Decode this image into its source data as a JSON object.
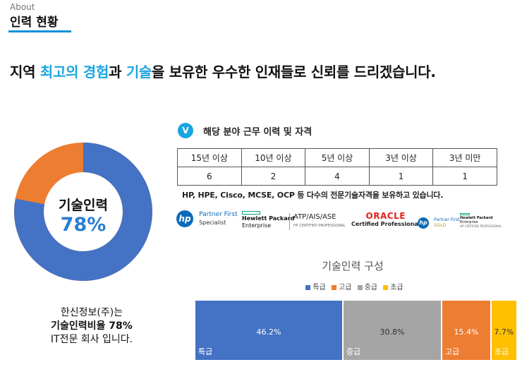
{
  "breadcrumb": "About",
  "page_title": "인력 현황",
  "headline": {
    "part1": "지역 ",
    "highlight1": "최고의 경험",
    "part2": "과 ",
    "highlight2": "기술",
    "part3": "을 보유한 우수한 인재들로 신뢰를 드리겠습니다."
  },
  "donut": {
    "label": "기술인력",
    "value": "78%",
    "fraction": 0.78,
    "colors": {
      "primary": "#4472c4",
      "secondary": "#ed7d31"
    }
  },
  "company": {
    "line1": "한신정보(주)는",
    "line2": "기술인력비율 78%",
    "line3": "IT전문 회사 입니다."
  },
  "section": {
    "badge": "V",
    "title": "해당 분야 근무 이력 및 자격"
  },
  "career_table": {
    "headers": [
      "15년 이상",
      "10년 이상",
      "5년 이상",
      "3년 이상",
      "3년 미만"
    ],
    "values": [
      "6",
      "2",
      "4",
      "1",
      "1"
    ]
  },
  "cert_text": "HP, HPE, Cisco, MCSE, OCP 등 다수의 전문기술자격을 보유하고 있습니다.",
  "logos": {
    "hp_partner": {
      "line1": "Partner First",
      "line2": "Specialist"
    },
    "hpe": {
      "line1": "Hewlett Packard",
      "line2": "Enterprise"
    },
    "atp": {
      "line1": "ATP/AIS/ASE",
      "line2": "HP CERTIFIED PROFESSIONAL"
    },
    "oracle": {
      "line1": "ORACLE",
      "line2": "Certified Professional"
    },
    "hp_gold": {
      "line1": "Partner First",
      "line2": "GOLD"
    },
    "hpe_small": {
      "line1": "Hewlett Packard",
      "line2": "Enterprise",
      "line3": "HP CERTIFIED PROFESSIONAL"
    }
  },
  "chart_data": {
    "type": "bar",
    "title": "기술인력 구성",
    "legend": [
      "특급",
      "고급",
      "중급",
      "초급"
    ],
    "categories": [
      "특급",
      "중급",
      "고급",
      "초급"
    ],
    "values": [
      46.2,
      30.8,
      15.4,
      7.7
    ],
    "labels": [
      "46.2%",
      "30.8%",
      "15.4%",
      "7.7%"
    ],
    "colors": {
      "특급": "#4472c4",
      "고급": "#ed7d31",
      "중급": "#a5a5a5",
      "초급": "#ffc000"
    },
    "legend_placement": "top"
  }
}
